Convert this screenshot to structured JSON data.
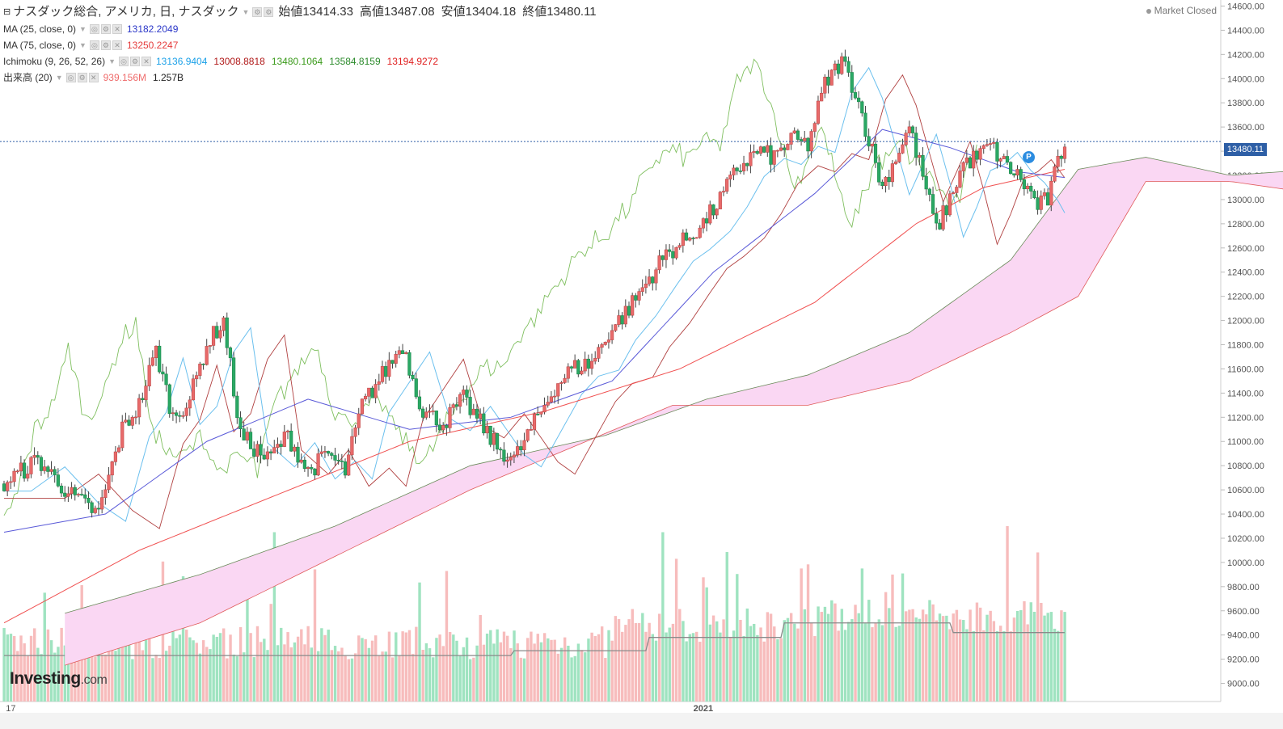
{
  "header": {
    "title": "ナスダック総合, アメリカ, 日, ナスダック",
    "ohlc": [
      {
        "label": "始値",
        "value": "13414.33"
      },
      {
        "label": "高値",
        "value": "13487.08"
      },
      {
        "label": "安値",
        "value": "13404.18"
      },
      {
        "label": "終値",
        "value": "13480.11"
      }
    ],
    "market_status": "Market Closed"
  },
  "indicators": {
    "ma25": {
      "label": "MA (25, close, 0)",
      "value": "13182.2049",
      "color": "#2a36c8"
    },
    "ma75": {
      "label": "MA (75, close, 0)",
      "value": "13250.2247",
      "color": "#e53b3b"
    },
    "ichimoku": {
      "label": "Ichimoku (9, 26, 52, 26)",
      "values": [
        "13136.9404",
        "13008.8818",
        "13480.1064",
        "13584.8159",
        "13194.9272"
      ],
      "colors": [
        "#1aa0e8",
        "#b01818",
        "#3a9a1a",
        "#2a8a2a",
        "#e02020"
      ]
    },
    "volume": {
      "label": "出来高 (20)",
      "values": [
        "939.156M",
        "1.257B"
      ],
      "colors": [
        "#ef6a6a",
        "#222222"
      ]
    }
  },
  "colors": {
    "up": "#e86a6a",
    "down": "#2aa864",
    "cloud": "#fad7f3",
    "cloud_neg": "#dcdcf5",
    "vol_up": "#f7bcbc",
    "vol_down": "#9fe3c0"
  },
  "price_tag": "13480.11",
  "marker_label": "P",
  "logo": {
    "main": "Investing",
    "suffix": ".com"
  },
  "chart_data": {
    "type": "candlestick",
    "last_price": 13480.11,
    "y_axis": {
      "min": 8850,
      "max": 14650,
      "ticks": [
        "14600.00",
        "14400.00",
        "14200.00",
        "14000.00",
        "13800.00",
        "13600.00",
        "13400.00",
        "13200.00",
        "13000.00",
        "12800.00",
        "12600.00",
        "12400.00",
        "12200.00",
        "12000.00",
        "11800.00",
        "11600.00",
        "11400.00",
        "11200.00",
        "11000.00",
        "10800.00",
        "10600.00",
        "10400.00",
        "10200.00",
        "10000.00",
        "9800.00",
        "9600.00",
        "9400.00",
        "9200.00",
        "9000.00"
      ]
    },
    "x_labels": [
      "17",
      "2021"
    ],
    "close_path": [
      [
        0,
        10650
      ],
      [
        10,
        10850
      ],
      [
        20,
        10550
      ],
      [
        28,
        10400
      ],
      [
        35,
        11100
      ],
      [
        40,
        11300
      ],
      [
        45,
        11750
      ],
      [
        50,
        11200
      ],
      [
        55,
        11350
      ],
      [
        60,
        11800
      ],
      [
        65,
        12000
      ],
      [
        70,
        11050
      ],
      [
        78,
        10850
      ],
      [
        84,
        11050
      ],
      [
        90,
        10750
      ],
      [
        96,
        10900
      ],
      [
        101,
        10750
      ],
      [
        106,
        11300
      ],
      [
        112,
        11550
      ],
      [
        118,
        11800
      ],
      [
        124,
        11250
      ],
      [
        130,
        11150
      ],
      [
        136,
        11350
      ],
      [
        141,
        11150
      ],
      [
        146,
        10950
      ],
      [
        151,
        10850
      ],
      [
        157,
        11150
      ],
      [
        163,
        11450
      ],
      [
        168,
        11600
      ],
      [
        174,
        11650
      ],
      [
        179,
        11900
      ],
      [
        185,
        12100
      ],
      [
        191,
        12350
      ],
      [
        196,
        12550
      ],
      [
        201,
        12650
      ],
      [
        207,
        12800
      ],
      [
        212,
        13000
      ],
      [
        217,
        13250
      ],
      [
        223,
        13400
      ],
      [
        228,
        13350
      ],
      [
        233,
        13500
      ],
      [
        238,
        13450
      ],
      [
        243,
        13950
      ],
      [
        248,
        14150
      ],
      [
        252,
        13900
      ],
      [
        256,
        13500
      ],
      [
        260,
        13100
      ],
      [
        264,
        13350
      ],
      [
        268,
        13600
      ],
      [
        272,
        13200
      ],
      [
        276,
        12750
      ],
      [
        280,
        13000
      ],
      [
        284,
        13300
      ],
      [
        288,
        13350
      ],
      [
        292,
        13450
      ],
      [
        296,
        13300
      ],
      [
        300,
        13200
      ],
      [
        304,
        13050
      ],
      [
        306,
        12950
      ],
      [
        309,
        13000
      ],
      [
        312,
        13300
      ],
      [
        314,
        13480.11
      ]
    ],
    "ma25_path": [
      [
        0,
        10250
      ],
      [
        30,
        10400
      ],
      [
        60,
        11000
      ],
      [
        90,
        11350
      ],
      [
        120,
        11100
      ],
      [
        150,
        11200
      ],
      [
        180,
        11500
      ],
      [
        210,
        12400
      ],
      [
        240,
        13050
      ],
      [
        260,
        13580
      ],
      [
        280,
        13430
      ],
      [
        300,
        13230
      ],
      [
        314,
        13182.2
      ]
    ],
    "ma75_path": [
      [
        0,
        9500
      ],
      [
        40,
        10100
      ],
      [
        80,
        10550
      ],
      [
        120,
        11000
      ],
      [
        160,
        11250
      ],
      [
        200,
        11600
      ],
      [
        240,
        12150
      ],
      [
        270,
        12800
      ],
      [
        290,
        13100
      ],
      [
        314,
        13250.2
      ]
    ],
    "cloud_a": [
      [
        0,
        9580
      ],
      [
        40,
        9900
      ],
      [
        80,
        10300
      ],
      [
        120,
        10800
      ],
      [
        160,
        11050
      ],
      [
        190,
        11350
      ],
      [
        220,
        11550
      ],
      [
        250,
        11900
      ],
      [
        280,
        12500
      ],
      [
        300,
        13250
      ],
      [
        320,
        13350
      ],
      [
        345,
        13200
      ],
      [
        370,
        13250
      ]
    ],
    "cloud_b": [
      [
        0,
        9150
      ],
      [
        40,
        9500
      ],
      [
        80,
        10050
      ],
      [
        120,
        10600
      ],
      [
        150,
        10950
      ],
      [
        180,
        11300
      ],
      [
        220,
        11300
      ],
      [
        250,
        11500
      ],
      [
        280,
        11900
      ],
      [
        300,
        12200
      ],
      [
        320,
        13150
      ],
      [
        345,
        13150
      ],
      [
        370,
        13050
      ]
    ],
    "volume": {
      "ticks_label_unit": "bars",
      "max_index": 314
    }
  }
}
